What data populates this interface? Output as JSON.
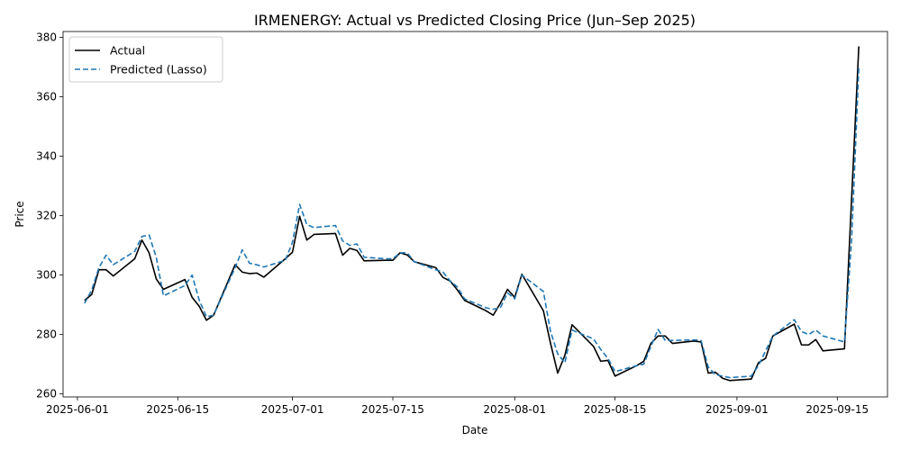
{
  "chart_data": {
    "type": "line",
    "title": "IRMENERGY: Actual vs Predicted Closing Price (Jun–Sep 2025)",
    "xlabel": "Date",
    "ylabel": "Price",
    "xlim": [
      "2025-05-30",
      "2025-09-22"
    ],
    "ylim": [
      259,
      382
    ],
    "x_ticks": [
      "2025-06-01",
      "2025-06-15",
      "2025-07-01",
      "2025-07-15",
      "2025-08-01",
      "2025-08-15",
      "2025-09-01",
      "2025-09-15"
    ],
    "y_ticks": [
      260,
      280,
      300,
      320,
      340,
      360,
      380
    ],
    "grid": false,
    "legend_position": "top-left",
    "series": [
      {
        "name": "Actual",
        "color": "#000000",
        "style": "solid",
        "points": [
          [
            "2025-06-02",
            291.5
          ],
          [
            "2025-06-03",
            293.5
          ],
          [
            "2025-06-04",
            301.8
          ],
          [
            "2025-06-05",
            301.8
          ],
          [
            "2025-06-06",
            299.7
          ],
          [
            "2025-06-09",
            305.5
          ],
          [
            "2025-06-10",
            311.8
          ],
          [
            "2025-06-11",
            307.5
          ],
          [
            "2025-06-12",
            298.7
          ],
          [
            "2025-06-13",
            295.2
          ],
          [
            "2025-06-16",
            298.5
          ],
          [
            "2025-06-17",
            292.5
          ],
          [
            "2025-06-18",
            289.5
          ],
          [
            "2025-06-19",
            284.8
          ],
          [
            "2025-06-20",
            286.5
          ],
          [
            "2025-06-23",
            303.5
          ],
          [
            "2025-06-24",
            301.0
          ],
          [
            "2025-06-25",
            300.5
          ],
          [
            "2025-06-26",
            300.7
          ],
          [
            "2025-06-27",
            299.3
          ],
          [
            "2025-06-30",
            305.5
          ],
          [
            "2025-07-01",
            307.7
          ],
          [
            "2025-07-02",
            319.8
          ],
          [
            "2025-07-03",
            311.8
          ],
          [
            "2025-07-04",
            313.7
          ],
          [
            "2025-07-07",
            314.0
          ],
          [
            "2025-07-08",
            306.7
          ],
          [
            "2025-07-09",
            309.0
          ],
          [
            "2025-07-10",
            308.3
          ],
          [
            "2025-07-11",
            304.8
          ],
          [
            "2025-07-14",
            305.0
          ],
          [
            "2025-07-15",
            305.0
          ],
          [
            "2025-07-16",
            307.5
          ],
          [
            "2025-07-17",
            306.8
          ],
          [
            "2025-07-18",
            304.5
          ],
          [
            "2025-07-21",
            302.5
          ],
          [
            "2025-07-22",
            299.2
          ],
          [
            "2025-07-23",
            298.0
          ],
          [
            "2025-07-24",
            295.0
          ],
          [
            "2025-07-25",
            291.5
          ],
          [
            "2025-07-28",
            288.0
          ],
          [
            "2025-07-29",
            286.5
          ],
          [
            "2025-07-30",
            290.5
          ],
          [
            "2025-07-31",
            295.2
          ],
          [
            "2025-08-01",
            292.5
          ],
          [
            "2025-08-02",
            300.3
          ],
          [
            "2025-08-05",
            288.0
          ],
          [
            "2025-08-06",
            277.0
          ],
          [
            "2025-08-07",
            267.0
          ],
          [
            "2025-08-08",
            273.0
          ],
          [
            "2025-08-09",
            283.3
          ],
          [
            "2025-08-12",
            276.0
          ],
          [
            "2025-08-13",
            271.0
          ],
          [
            "2025-08-14",
            271.3
          ],
          [
            "2025-08-15",
            266.0
          ],
          [
            "2025-08-18",
            269.5
          ],
          [
            "2025-08-19",
            271.0
          ],
          [
            "2025-08-20",
            277.0
          ],
          [
            "2025-08-21",
            279.5
          ],
          [
            "2025-08-22",
            279.5
          ],
          [
            "2025-08-23",
            277.0
          ],
          [
            "2025-08-26",
            277.8
          ],
          [
            "2025-08-27",
            277.5
          ],
          [
            "2025-08-28",
            267.0
          ],
          [
            "2025-08-29",
            267.3
          ],
          [
            "2025-08-30",
            265.3
          ],
          [
            "2025-08-31",
            264.5
          ],
          [
            "2025-09-03",
            265.0
          ],
          [
            "2025-09-04",
            270.5
          ],
          [
            "2025-09-05",
            272.0
          ],
          [
            "2025-09-06",
            279.5
          ],
          [
            "2025-09-09",
            283.5
          ],
          [
            "2025-09-10",
            276.5
          ],
          [
            "2025-09-11",
            276.5
          ],
          [
            "2025-09-12",
            278.3
          ],
          [
            "2025-09-13",
            274.5
          ],
          [
            "2025-09-16",
            275.2
          ],
          [
            "2025-09-17",
            326.0
          ],
          [
            "2025-09-18",
            377.0
          ]
        ]
      },
      {
        "name": "Predicted (Lasso)",
        "color": "#1f77b4",
        "style": "dashed",
        "points": [
          [
            "2025-06-02",
            290.5
          ],
          [
            "2025-06-03",
            295.0
          ],
          [
            "2025-06-04",
            302.5
          ],
          [
            "2025-06-05",
            306.7
          ],
          [
            "2025-06-06",
            303.5
          ],
          [
            "2025-06-09",
            308.0
          ],
          [
            "2025-06-10",
            313.0
          ],
          [
            "2025-06-11",
            313.5
          ],
          [
            "2025-06-12",
            306.0
          ],
          [
            "2025-06-13",
            293.0
          ],
          [
            "2025-06-16",
            296.5
          ],
          [
            "2025-06-17",
            300.0
          ],
          [
            "2025-06-18",
            291.5
          ],
          [
            "2025-06-19",
            286.0
          ],
          [
            "2025-06-20",
            286.5
          ],
          [
            "2025-06-23",
            302.5
          ],
          [
            "2025-06-24",
            308.5
          ],
          [
            "2025-06-25",
            304.0
          ],
          [
            "2025-06-26",
            303.5
          ],
          [
            "2025-06-27",
            302.7
          ],
          [
            "2025-06-30",
            305.0
          ],
          [
            "2025-07-01",
            311.0
          ],
          [
            "2025-07-02",
            323.8
          ],
          [
            "2025-07-03",
            317.0
          ],
          [
            "2025-07-04",
            316.0
          ],
          [
            "2025-07-07",
            316.7
          ],
          [
            "2025-07-08",
            311.5
          ],
          [
            "2025-07-09",
            310.0
          ],
          [
            "2025-07-10",
            310.5
          ],
          [
            "2025-07-11",
            306.0
          ],
          [
            "2025-07-14",
            305.5
          ],
          [
            "2025-07-15",
            305.5
          ],
          [
            "2025-07-16",
            307.5
          ],
          [
            "2025-07-17",
            307.5
          ],
          [
            "2025-07-18",
            304.5
          ],
          [
            "2025-07-21",
            301.8
          ],
          [
            "2025-07-22",
            301.0
          ],
          [
            "2025-07-23",
            298.0
          ],
          [
            "2025-07-24",
            296.0
          ],
          [
            "2025-07-25",
            292.0
          ],
          [
            "2025-07-28",
            289.0
          ],
          [
            "2025-07-29",
            288.5
          ],
          [
            "2025-07-30",
            289.0
          ],
          [
            "2025-07-31",
            294.0
          ],
          [
            "2025-08-01",
            292.0
          ],
          [
            "2025-08-02",
            300.0
          ],
          [
            "2025-08-05",
            294.5
          ],
          [
            "2025-08-06",
            281.0
          ],
          [
            "2025-08-07",
            273.5
          ],
          [
            "2025-08-08",
            270.5
          ],
          [
            "2025-08-09",
            281.5
          ],
          [
            "2025-08-12",
            278.5
          ],
          [
            "2025-08-13",
            275.0
          ],
          [
            "2025-08-14",
            272.0
          ],
          [
            "2025-08-15",
            267.5
          ],
          [
            "2025-08-18",
            269.5
          ],
          [
            "2025-08-19",
            270.0
          ],
          [
            "2025-08-20",
            276.0
          ],
          [
            "2025-08-21",
            281.7
          ],
          [
            "2025-08-22",
            278.0
          ],
          [
            "2025-08-23",
            278.0
          ],
          [
            "2025-08-26",
            278.2
          ],
          [
            "2025-08-27",
            278.0
          ],
          [
            "2025-08-28",
            269.0
          ],
          [
            "2025-08-29",
            266.5
          ],
          [
            "2025-08-30",
            266.0
          ],
          [
            "2025-08-31",
            265.5
          ],
          [
            "2025-09-03",
            266.0
          ],
          [
            "2025-09-04",
            269.5
          ],
          [
            "2025-09-05",
            274.5
          ],
          [
            "2025-09-06",
            279.5
          ],
          [
            "2025-09-09",
            285.0
          ],
          [
            "2025-09-10",
            281.0
          ],
          [
            "2025-09-11",
            280.0
          ],
          [
            "2025-09-12",
            281.5
          ],
          [
            "2025-09-13",
            279.5
          ],
          [
            "2025-09-16",
            277.5
          ],
          [
            "2025-09-17",
            312.0
          ],
          [
            "2025-09-18",
            370.0
          ]
        ]
      }
    ]
  }
}
